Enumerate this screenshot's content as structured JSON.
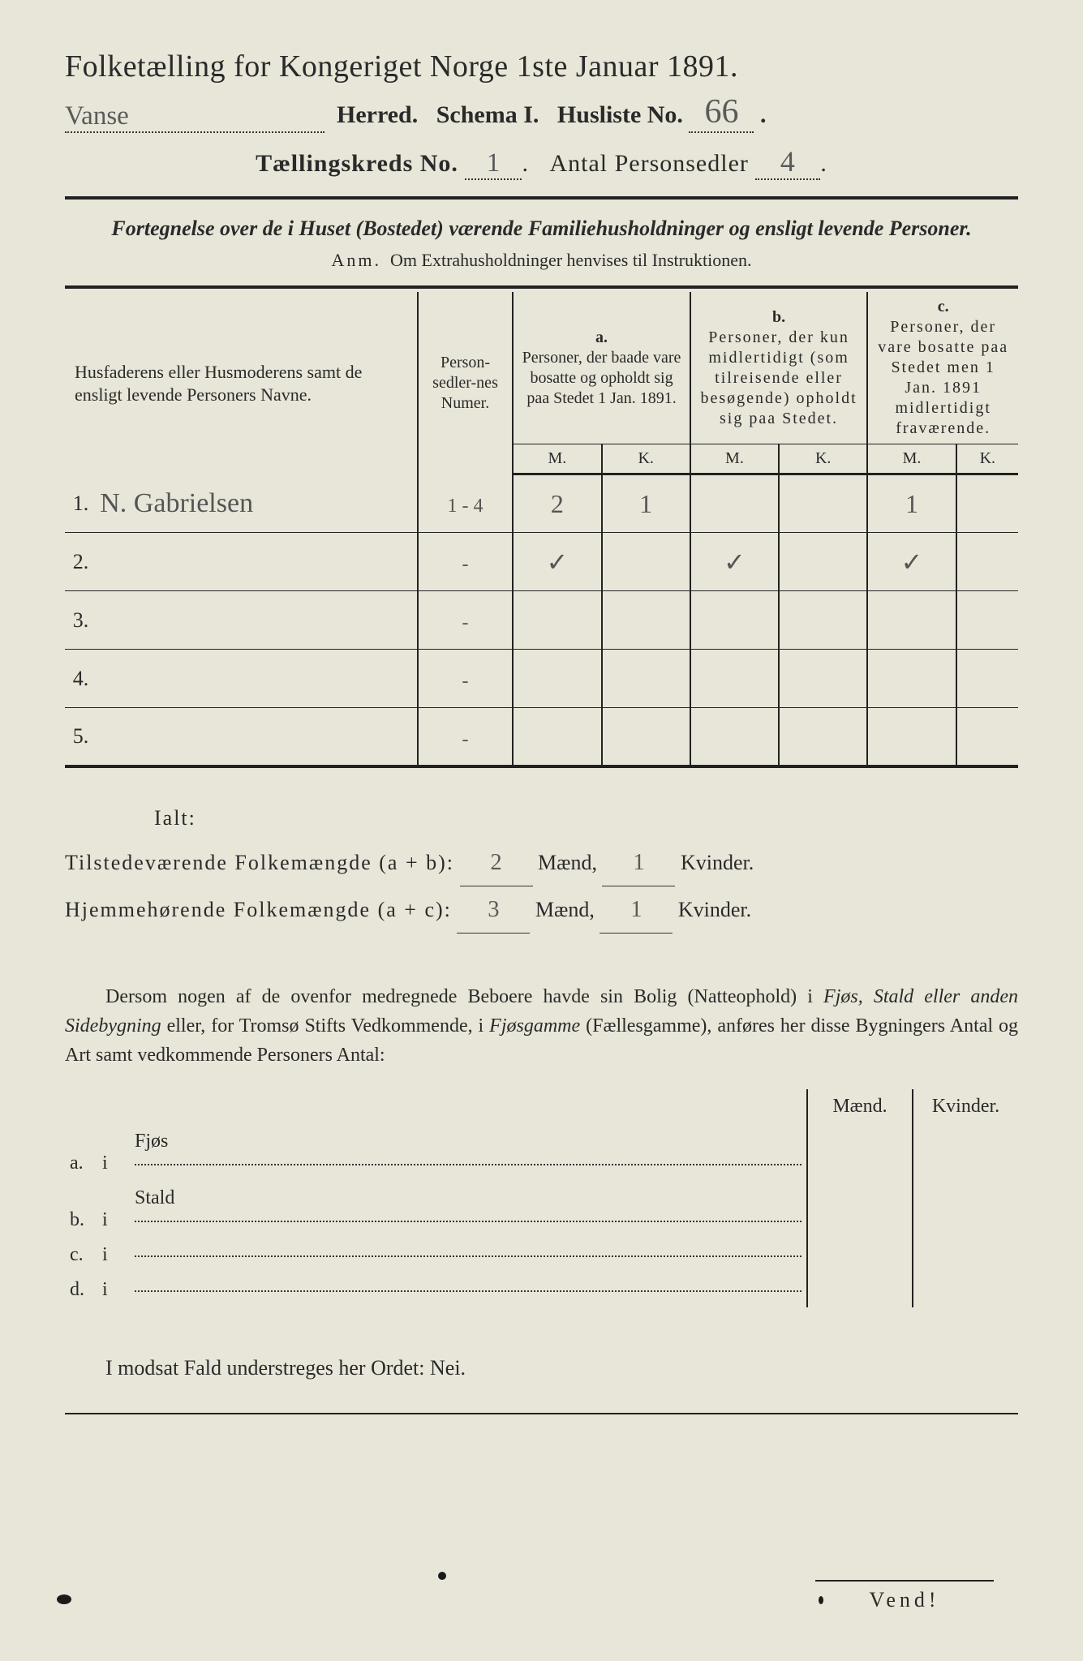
{
  "header": {
    "title": "Folketælling for Kongeriget Norge 1ste Januar 1891.",
    "herred_value": "Vanse",
    "herred_label": "Herred.",
    "schema_label": "Schema I.",
    "husliste_label": "Husliste No.",
    "husliste_value": "66",
    "kredslabel": "Tællingskreds No.",
    "kreds_value": "1",
    "personsedler_label": "Antal Personsedler",
    "personsedler_value": "4"
  },
  "subtitle": "Fortegnelse over de i Huset (Bostedet) værende Familiehusholdninger og ensligt levende Personer.",
  "anm": {
    "prefix": "Anm.",
    "text": "Om Extrahusholdninger henvises til Instruktionen."
  },
  "table": {
    "headers": {
      "name": "Husfaderens eller Husmoderens samt de ensligt levende Personers Navne.",
      "num": "Person-sedler-nes Numer.",
      "a_letter": "a.",
      "a": "Personer, der baade vare bosatte og opholdt sig paa Stedet 1 Jan. 1891.",
      "b_letter": "b.",
      "b": "Personer, der kun midlertidigt (som tilreisende eller besøgende) opholdt sig paa Stedet.",
      "c_letter": "c.",
      "c": "Personer, der vare bosatte paa Stedet men 1 Jan. 1891 midlertidigt fraværende.",
      "M": "M.",
      "K": "K."
    },
    "rows": [
      {
        "n": "1.",
        "name": "N. Gabrielsen",
        "num": "1 - 4",
        "aM": "2",
        "aK": "1",
        "bM": "",
        "bK": "",
        "cM": "1",
        "cK": ""
      },
      {
        "n": "2.",
        "name": "",
        "num": "-",
        "aM": "✓",
        "aK": "",
        "bM": "✓",
        "bK": "",
        "cM": "✓",
        "cK": ""
      },
      {
        "n": "3.",
        "name": "",
        "num": "-",
        "aM": "",
        "aK": "",
        "bM": "",
        "bK": "",
        "cM": "",
        "cK": ""
      },
      {
        "n": "4.",
        "name": "",
        "num": "-",
        "aM": "",
        "aK": "",
        "bM": "",
        "bK": "",
        "cM": "",
        "cK": ""
      },
      {
        "n": "5.",
        "name": "",
        "num": "-",
        "aM": "",
        "aK": "",
        "bM": "",
        "bK": "",
        "cM": "",
        "cK": ""
      }
    ]
  },
  "totals": {
    "ialt": "Ialt:",
    "line1_label": "Tilstedeværende Folkemængde (a + b):",
    "line1_m": "2",
    "line1_k": "1",
    "line2_label": "Hjemmehørende Folkemængde (a + c):",
    "line2_m": "3",
    "line2_k": "1",
    "maend": "Mænd,",
    "kvinder": "Kvinder."
  },
  "para": "Dersom nogen af de ovenfor medregnede Beboere havde sin Bolig (Natteophold) i Fjøs, Stald eller anden Sidebygning eller, for Tromsø Stifts Vedkommende, i Fjøsgamme (Fællesgamme), anføres her disse Bygningers Antal og Art samt vedkommende Personers Antal:",
  "bldg": {
    "maend": "Mænd.",
    "kvinder": "Kvinder.",
    "rows": [
      {
        "k": "a.",
        "i": "i",
        "label": "Fjøs"
      },
      {
        "k": "b.",
        "i": "i",
        "label": "Stald"
      },
      {
        "k": "c.",
        "i": "i",
        "label": ""
      },
      {
        "k": "d.",
        "i": "i",
        "label": ""
      }
    ]
  },
  "nei": "I modsat Fald understreges her Ordet: Nei.",
  "footer": "Vend!",
  "colors": {
    "bg": "#e8e6d8",
    "ink": "#2a2a2a",
    "handwriting": "#5a5a5a"
  }
}
